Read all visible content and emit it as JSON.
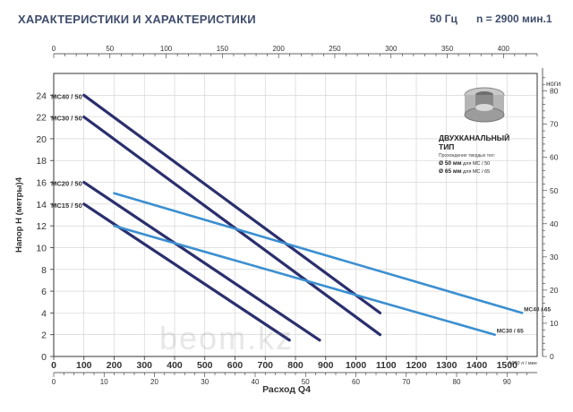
{
  "header": {
    "title": "ХАРАКТЕРИСТИКИ И ХАРАКТЕРИСТИКИ",
    "frequency": "50 Гц",
    "speed": "n = 2900 мин.1"
  },
  "infobox": {
    "title_line1": "ДВУХКАНАЛЬНЫЙ",
    "title_line2": "ТИП",
    "subtitle": "Прохождение твердых тел:",
    "rows": [
      {
        "size": "Ø 50 мм",
        "rest": "для MC / 50"
      },
      {
        "size": "Ø 65 мм",
        "rest": "для MC / 65"
      }
    ]
  },
  "watermark": "beom.kz",
  "colors": {
    "dark_series": "#2b2f6e",
    "light_series": "#3b8fd1",
    "axis": "#333333",
    "grid": "#cfcfcf",
    "title": "#3f4d6b"
  },
  "chart_data": {
    "type": "line",
    "xlabel": "Расход Q4",
    "ylabel": "Напор H (метры)4",
    "x_unit_label": "1600 л / мин",
    "x_ticks": [
      0,
      100,
      200,
      300,
      400,
      500,
      600,
      700,
      800,
      900,
      1000,
      1100,
      1200,
      1300,
      1400,
      1500
    ],
    "y_ticks": [
      0,
      2,
      4,
      6,
      8,
      10,
      12,
      14,
      16,
      18,
      20,
      22,
      24
    ],
    "xlim": [
      0,
      1600
    ],
    "ylim": [
      0,
      26
    ],
    "top_axis_ticks": [
      0,
      50,
      100,
      150,
      200,
      250,
      300,
      350,
      400
    ],
    "top_axis_lim": [
      0,
      430
    ],
    "bottom_axis2_ticks": [
      0,
      10,
      20,
      30,
      40,
      50,
      60,
      70,
      80,
      90
    ],
    "bottom_axis2_lim": [
      0,
      96
    ],
    "right_axis_label": "ноги",
    "right_axis_ticks": [
      0,
      10,
      20,
      30,
      40,
      50,
      60,
      70,
      80
    ],
    "right_axis_lim": [
      0,
      85.3
    ],
    "series": [
      {
        "name": "MC40 / 50",
        "style": "dark",
        "x": [
          100,
          1080
        ],
        "y": [
          24,
          4
        ]
      },
      {
        "name": "MC30 / 50",
        "style": "dark",
        "x": [
          100,
          1080
        ],
        "y": [
          22,
          2
        ]
      },
      {
        "name": "MC20 / 50",
        "style": "dark",
        "x": [
          100,
          880
        ],
        "y": [
          16,
          1.5
        ]
      },
      {
        "name": "MC15 / 50",
        "style": "dark",
        "x": [
          100,
          780
        ],
        "y": [
          14,
          1.5
        ]
      },
      {
        "name": "MC40 / 65",
        "style": "light",
        "x": [
          200,
          1550
        ],
        "y": [
          15,
          4
        ]
      },
      {
        "name": "MC30 / 65",
        "style": "light",
        "x": [
          200,
          1460
        ],
        "y": [
          12,
          2
        ]
      }
    ]
  }
}
